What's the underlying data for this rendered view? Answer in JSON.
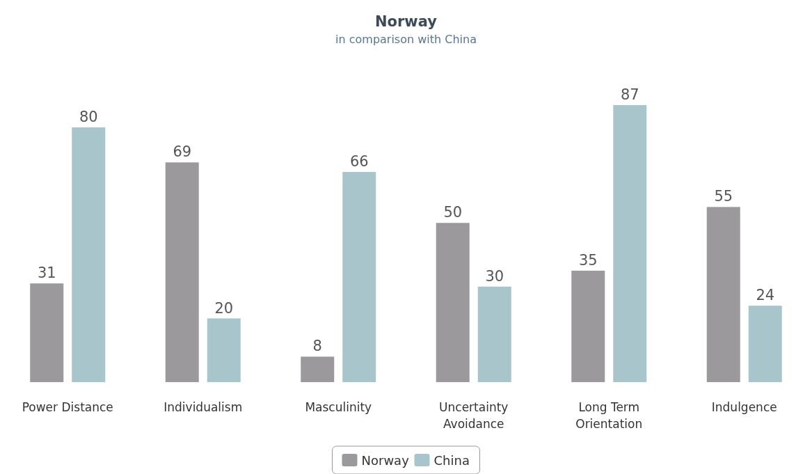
{
  "chart_data": {
    "type": "bar",
    "title": "Norway",
    "subtitle": "in comparison with China",
    "categories": [
      "Power Distance",
      "Individualism",
      "Masculinity",
      "Uncertainty Avoidance",
      "Long Term Orientation",
      "Indulgence"
    ],
    "series": [
      {
        "name": "Norway",
        "color": "#9b999c",
        "values": [
          31,
          69,
          8,
          50,
          35,
          55
        ]
      },
      {
        "name": "China",
        "color": "#a9c5cc",
        "values": [
          80,
          20,
          66,
          30,
          87,
          24
        ]
      }
    ],
    "data_labels": true,
    "legend": "bottom",
    "grid": false
  }
}
